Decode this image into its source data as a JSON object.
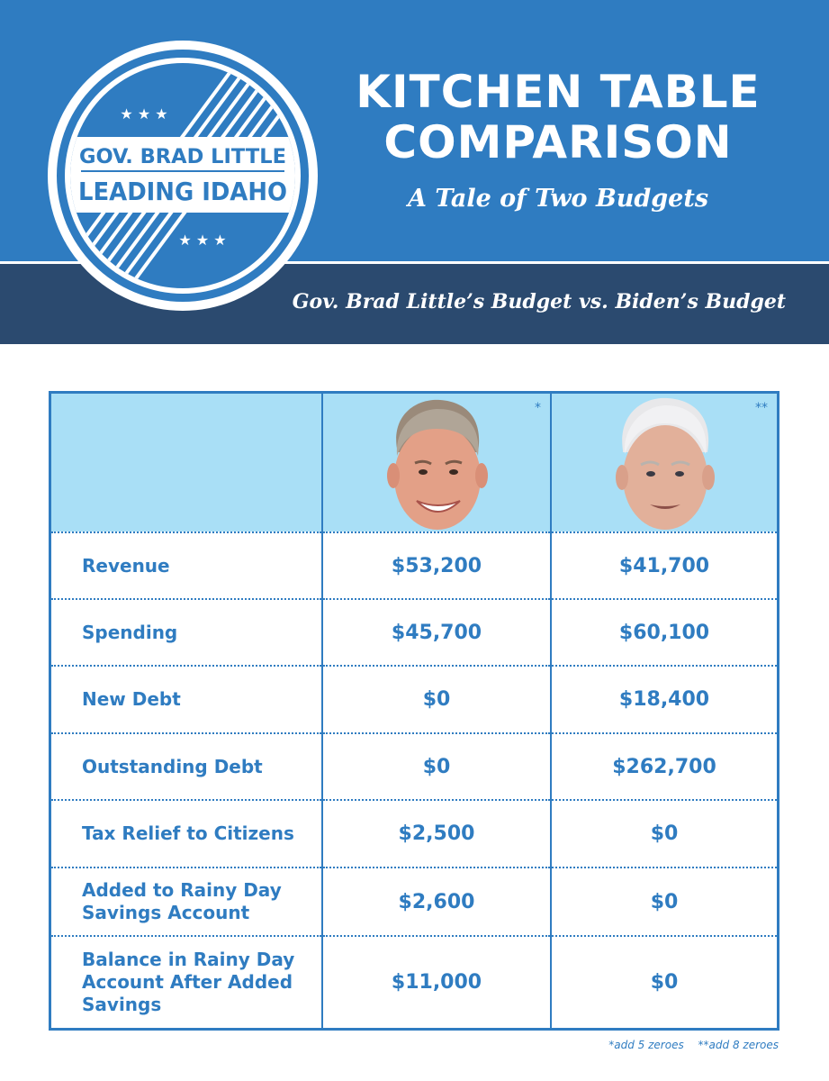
{
  "header": {
    "title_line1": "KITCHEN TABLE",
    "title_line2": "COMPARISON",
    "subtitle": "A Tale of Two Budgets",
    "versus": "Gov. Brad Little’s Budget vs. Biden’s Budget"
  },
  "logo": {
    "line1": "GOV. BRAD LITTLE",
    "line2": "LEADING IDAHO",
    "stars": "★ ★ ★"
  },
  "table": {
    "columns": [
      {
        "marker": "*",
        "portrait": "brad-little-portrait-icon"
      },
      {
        "marker": "**",
        "portrait": "biden-portrait-icon"
      }
    ],
    "rows": [
      {
        "label": "Revenue",
        "little": "$53,200",
        "biden": "$41,700"
      },
      {
        "label": "Spending",
        "little": "$45,700",
        "biden": "$60,100"
      },
      {
        "label": "New Debt",
        "little": "$0",
        "biden": "$18,400"
      },
      {
        "label": "Outstanding Debt",
        "little": "$0",
        "biden": "$262,700"
      },
      {
        "label": "Tax Relief to Citizens",
        "little": "$2,500",
        "biden": "$0"
      },
      {
        "label": "Added to Rainy Day Savings Account",
        "little": "$2,600",
        "biden": "$0"
      },
      {
        "label": "Balance in Rainy Day Account After Added Savings",
        "little": "$11,000",
        "biden": "$0"
      }
    ]
  },
  "footnotes": {
    "single": "*add 5 zeroes",
    "double": "**add 8 zeroes"
  },
  "colors": {
    "brand_blue": "#2f7cc1",
    "navy": "#2b4a6f",
    "light_blue": "#a9dff6"
  }
}
